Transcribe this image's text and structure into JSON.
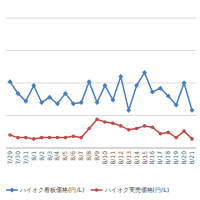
{
  "chart_data": {
    "type": "line",
    "categories": [
      "7/29",
      "7/30",
      "7/31",
      "8/1",
      "8/2",
      "8/3",
      "8/4",
      "8/5",
      "8/6",
      "8/7",
      "8/8",
      "8/9",
      "8/10",
      "8/11",
      "8/12",
      "8/13",
      "8/14",
      "8/15",
      "8/16",
      "8/17",
      "8/18",
      "8/19",
      "8/20",
      "8/21"
    ],
    "series": [
      {
        "name": "ハイオク看板価格(円/L)",
        "color": "#4a7ebb",
        "marker": "diamond",
        "values": [
          51,
          42,
          36,
          48,
          35,
          39,
          34,
          42,
          34,
          35,
          51,
          35,
          48,
          37,
          55,
          29,
          48,
          58,
          43,
          46,
          40,
          33,
          50,
          29
        ]
      },
      {
        "name": "ハイオク実売価格(円/L)",
        "color": "#be4b48",
        "marker": "circle",
        "values": [
          10,
          8,
          8,
          7,
          8,
          8,
          8,
          8,
          9,
          8,
          15,
          22,
          20,
          19,
          17,
          14,
          15,
          17,
          16,
          11,
          12,
          8,
          13,
          7
        ]
      }
    ],
    "ylim": [
      0,
      100
    ],
    "yticks": [
      0,
      25,
      50,
      75,
      100
    ],
    "grid": true,
    "tick_labels": "x",
    "legend": "bottom"
  }
}
